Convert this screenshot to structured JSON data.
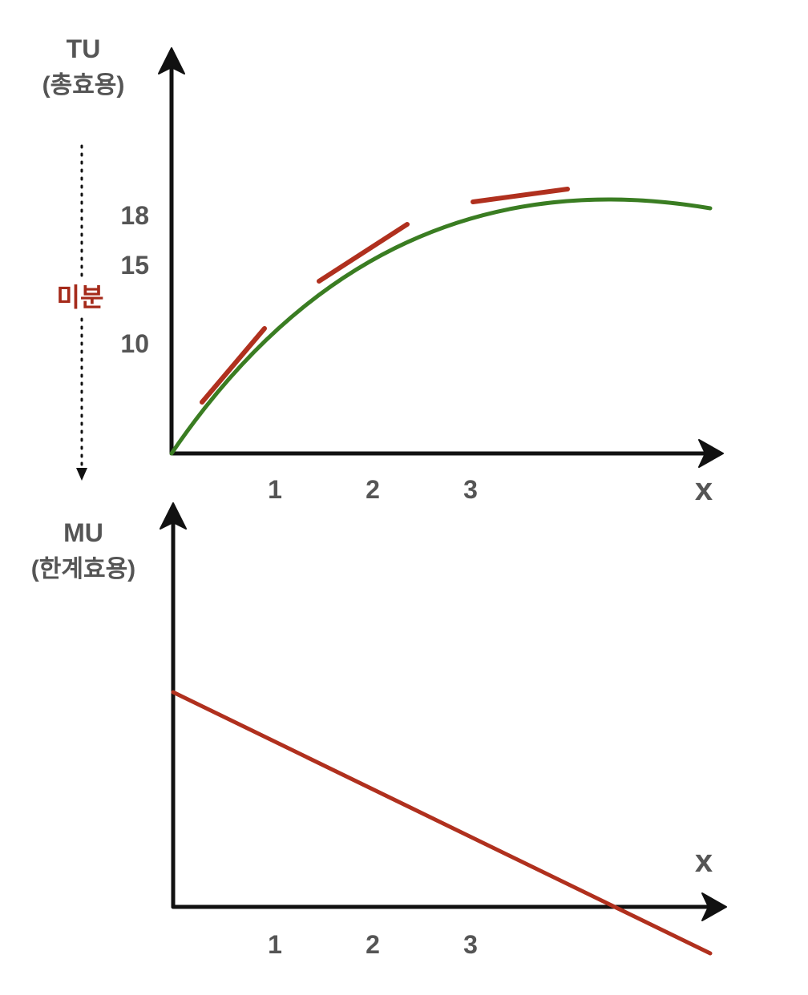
{
  "top_chart": {
    "y_label": "TU",
    "y_label_sub": "(총효용)",
    "x_label": "x",
    "x_ticks": [
      "1",
      "2",
      "3"
    ],
    "y_ticks": [
      "18",
      "15",
      "10"
    ],
    "curve_color": "#3a7d22",
    "tangent_color": "#b0301e"
  },
  "bottom_chart": {
    "y_label": "MU",
    "y_label_sub": "(한계효용)",
    "x_label": "x",
    "x_ticks": [
      "1",
      "2",
      "3"
    ],
    "line_color": "#b0301e"
  },
  "derivative_label": "미분",
  "icons": {
    "axis_arrow": "arrowhead-icon",
    "flow_arrow": "down-arrow-icon"
  }
}
